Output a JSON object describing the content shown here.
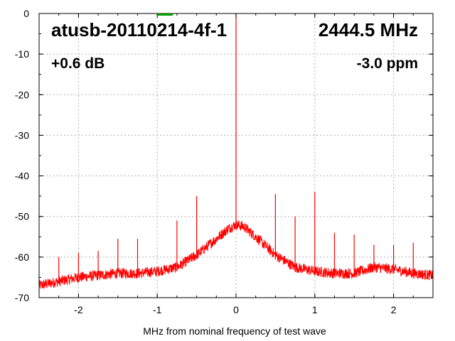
{
  "chart_data": {
    "type": "line",
    "title": "",
    "xlabel": "MHz from nominal frequency of test wave",
    "ylabel": "",
    "xlim": [
      -2.5,
      2.5
    ],
    "ylim": [
      -70,
      0
    ],
    "x_ticks": [
      -2,
      -1,
      0,
      1,
      2
    ],
    "x_tick_labels": [
      "-2",
      "-1",
      "0",
      "1",
      "2"
    ],
    "y_ticks": [
      0,
      -10,
      -20,
      -30,
      -40,
      -50,
      -60,
      -70
    ],
    "y_tick_labels": [
      "0",
      "-10",
      "-20",
      "-30",
      "-40",
      "-50",
      "-60",
      "-70"
    ],
    "grid": true,
    "legend": "none",
    "annotations": {
      "device": "atusb-20110214-4f-1",
      "frequency": "2444.5 MHz",
      "power": "+0.6 dB",
      "offset": "-3.0 ppm"
    },
    "series": [
      {
        "color": "#ff0000",
        "baseline": {
          "x": [
            -2.5,
            -2.25,
            -2.0,
            -1.75,
            -1.5,
            -1.25,
            -1.0,
            -0.75,
            -0.5,
            -0.25,
            -0.1,
            0.0,
            0.1,
            0.25,
            0.5,
            0.75,
            1.0,
            1.25,
            1.5,
            1.75,
            2.0,
            2.25,
            2.5
          ],
          "y": [
            -67,
            -66,
            -65,
            -64.5,
            -64,
            -64,
            -63.5,
            -62.5,
            -59.5,
            -55.5,
            -53,
            -52,
            -52.5,
            -55,
            -59.5,
            -62.5,
            -63.5,
            -64,
            -64,
            -62.5,
            -63,
            -64,
            -64.5
          ]
        },
        "spurs": [
          {
            "x": -2.25,
            "y": -60
          },
          {
            "x": -2.0,
            "y": -59
          },
          {
            "x": -1.75,
            "y": -58.5
          },
          {
            "x": -1.5,
            "y": -55.5
          },
          {
            "x": -1.25,
            "y": -55.5
          },
          {
            "x": -0.75,
            "y": -51
          },
          {
            "x": -0.5,
            "y": -45
          },
          {
            "x": 0.0,
            "y": 0
          },
          {
            "x": 0.5,
            "y": -44.5
          },
          {
            "x": 0.75,
            "y": -50
          },
          {
            "x": 1.0,
            "y": -44
          },
          {
            "x": 1.25,
            "y": -54
          },
          {
            "x": 1.5,
            "y": -54.5
          },
          {
            "x": 1.75,
            "y": -57
          },
          {
            "x": 2.0,
            "y": -57
          },
          {
            "x": 2.25,
            "y": -56.5
          }
        ]
      }
    ],
    "marker": {
      "x": -0.9,
      "y": 0,
      "color": "#00a000"
    }
  }
}
